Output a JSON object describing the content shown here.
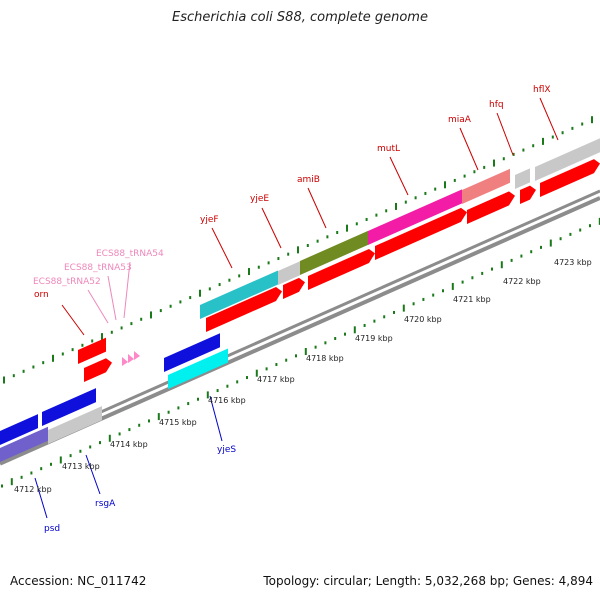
{
  "header": {
    "title": "Escherichia coli S88, complete genome"
  },
  "footer": {
    "accession": "Accession: NC_011742",
    "summary": "Topology: circular; Length: 5,032,268 bp; Genes: 4,894"
  },
  "colors": {
    "backbone": "#8c8c8c",
    "tick": "#1a7a1a",
    "red": "#ff0000",
    "gray": "#c8c8c8",
    "cyan": "#29c1c8",
    "olive": "#6f8b22",
    "magenta": "#f21ca6",
    "salmon": "#f08080",
    "blue": "#1010dd",
    "cyanBright": "#00f0f0",
    "purple": "#7060cc",
    "trna": "#ff88c8",
    "labelRed": "#cc0000",
    "labelBlue": "#0000cc",
    "labelPink": "#ee88bb"
  },
  "kbp_labels": [
    "4712 kbp",
    "4713 kbp",
    "4714 kbp",
    "4715 kbp",
    "4716 kbp",
    "4717 kbp",
    "4718 kbp",
    "4719 kbp",
    "4720 kbp",
    "4721 kbp",
    "4722 kbp",
    "4723 kbp"
  ],
  "genes_top": [
    "orn",
    "ECS88_tRNA52",
    "ECS88_tRNA53",
    "ECS88_tRNA54",
    "yjeF",
    "yjeE",
    "amiB",
    "mutL",
    "miaA",
    "hfq",
    "hflX"
  ],
  "genes_bottom": [
    "psd",
    "rsgA",
    "yjeS"
  ]
}
